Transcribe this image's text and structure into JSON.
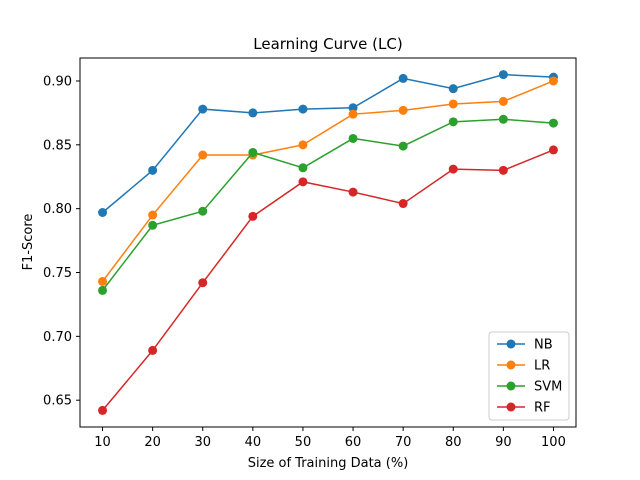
{
  "chart_data": {
    "type": "line",
    "title": "Learning Curve (LC)",
    "xlabel": "Size of Training Data (%)",
    "ylabel": "F1-Score",
    "x": [
      10,
      20,
      30,
      40,
      50,
      60,
      70,
      80,
      90,
      100
    ],
    "xticks": [
      "10",
      "20",
      "30",
      "40",
      "50",
      "60",
      "70",
      "80",
      "90",
      "100"
    ],
    "yticks": [
      "0.65",
      "0.70",
      "0.75",
      "0.80",
      "0.85",
      "0.90"
    ],
    "ytick_values": [
      0.65,
      0.7,
      0.75,
      0.8,
      0.85,
      0.9
    ],
    "xlim": [
      5.5,
      104.5
    ],
    "ylim": [
      0.629,
      0.918
    ],
    "grid": false,
    "legend_position": "lower-right",
    "series": [
      {
        "name": "NB",
        "color": "#1f77b4",
        "values": [
          0.797,
          0.83,
          0.878,
          0.875,
          0.878,
          0.879,
          0.902,
          0.894,
          0.905,
          0.903
        ]
      },
      {
        "name": "LR",
        "color": "#ff7f0e",
        "values": [
          0.743,
          0.795,
          0.842,
          0.842,
          0.85,
          0.874,
          0.877,
          0.882,
          0.884,
          0.9
        ]
      },
      {
        "name": "SVM",
        "color": "#2ca02c",
        "values": [
          0.736,
          0.787,
          0.798,
          0.844,
          0.832,
          0.855,
          0.849,
          0.868,
          0.87,
          0.867
        ]
      },
      {
        "name": "RF",
        "color": "#d62728",
        "values": [
          0.642,
          0.689,
          0.742,
          0.794,
          0.821,
          0.813,
          0.804,
          0.831,
          0.83,
          0.846
        ]
      }
    ]
  }
}
